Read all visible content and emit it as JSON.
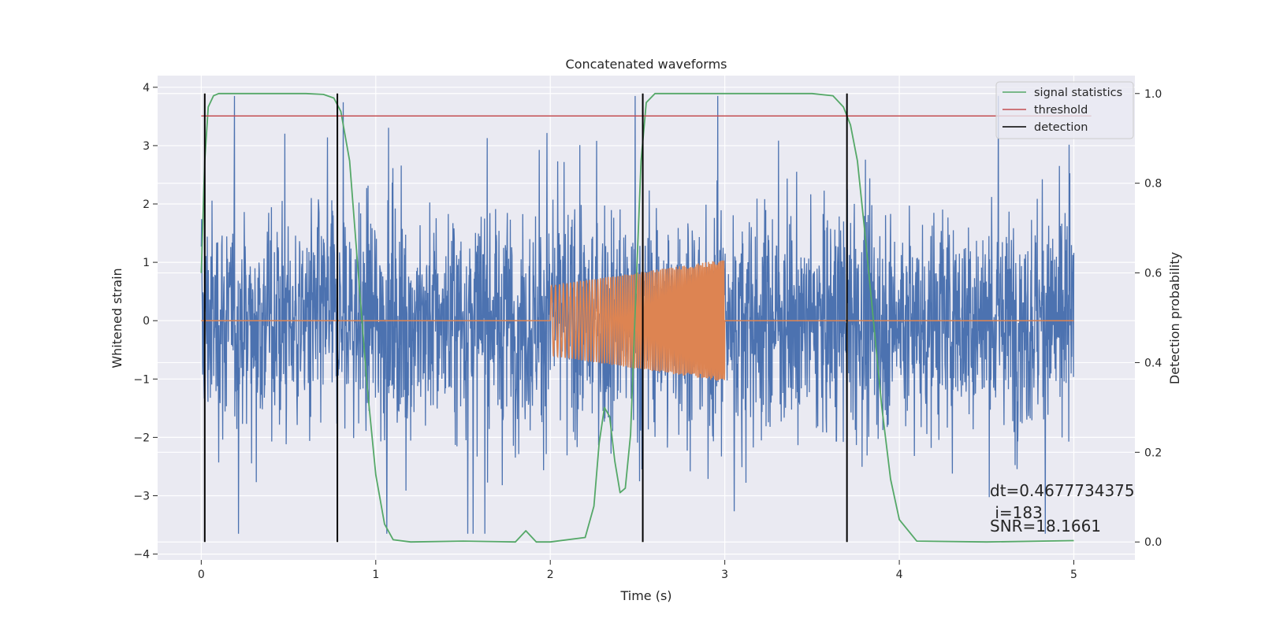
{
  "chart_data": {
    "type": "line",
    "title": "Concatenated waveforms",
    "xlabel": "Time (s)",
    "ylabel": "Whitened strain",
    "ylabel_right": "Detection probability",
    "xlim": [
      -0.25,
      5.35
    ],
    "ylim": [
      -4.1,
      4.2
    ],
    "ylim_right": [
      -0.04,
      1.04
    ],
    "x_ticks": [
      0,
      1,
      2,
      3,
      4,
      5
    ],
    "y_ticks": [
      -4,
      -3,
      -2,
      -1,
      0,
      1,
      2,
      3,
      4
    ],
    "y_ticks_right": [
      0.0,
      0.2,
      0.4,
      0.6,
      0.8,
      1.0
    ],
    "x_tick_labels": [
      "0",
      "1",
      "2",
      "3",
      "4",
      "5"
    ],
    "y_tick_labels": [
      "−4",
      "−3",
      "−2",
      "−1",
      "0",
      "1",
      "2",
      "3",
      "4"
    ],
    "y_tick_labels_right": [
      "0.0",
      "0.2",
      "0.4",
      "0.6",
      "0.8",
      "1.0"
    ],
    "grid": true,
    "legend_position": "top-right",
    "colors": {
      "background": "#eaeaf2",
      "strain": "#4c72b0",
      "template": "#dd8452",
      "signal_statistics": "#55a868",
      "threshold": "#c44e52",
      "detection": "#000000"
    },
    "series": [
      {
        "name": "",
        "axis": "left",
        "kind": "noise",
        "x_range": [
          0,
          5
        ],
        "amplitude_rms": 1.0,
        "y_min": -3.65,
        "y_max": 3.85
      },
      {
        "name": "",
        "axis": "left",
        "kind": "chirp",
        "x_range": [
          0,
          5
        ],
        "chirp_start": 2.0,
        "chirp_end": 3.0,
        "amplitude_start": 0.6,
        "amplitude_end": 1.05
      },
      {
        "name": "signal statistics",
        "axis": "right",
        "x": [
          0.0,
          0.02,
          0.04,
          0.07,
          0.1,
          0.3,
          0.6,
          0.7,
          0.76,
          0.8,
          0.85,
          0.9,
          0.95,
          1.0,
          1.05,
          1.1,
          1.2,
          1.5,
          1.8,
          1.86,
          1.92,
          2.0,
          2.2,
          2.25,
          2.28,
          2.31,
          2.34,
          2.37,
          2.4,
          2.43,
          2.46,
          2.49,
          2.52,
          2.55,
          2.6,
          2.7,
          3.5,
          3.62,
          3.68,
          3.72,
          3.76,
          3.8,
          3.85,
          3.9,
          3.95,
          4.0,
          4.1,
          4.5,
          5.0
        ],
        "y": [
          0.6,
          0.85,
          0.97,
          0.995,
          1.0,
          1.0,
          1.0,
          0.998,
          0.99,
          0.96,
          0.85,
          0.6,
          0.35,
          0.15,
          0.04,
          0.005,
          0.0,
          0.002,
          0.0,
          0.025,
          0.0,
          0.0,
          0.01,
          0.08,
          0.22,
          0.3,
          0.28,
          0.18,
          0.11,
          0.12,
          0.24,
          0.55,
          0.85,
          0.98,
          1.0,
          1.0,
          1.0,
          0.995,
          0.97,
          0.93,
          0.85,
          0.7,
          0.5,
          0.3,
          0.14,
          0.05,
          0.002,
          0.0,
          0.003
        ]
      },
      {
        "name": "threshold",
        "axis": "right",
        "x": [
          0,
          5.1
        ],
        "y": [
          0.95,
          0.95
        ]
      },
      {
        "name": "detection",
        "axis": "right",
        "vlines": [
          0.02,
          0.78,
          2.53,
          3.7
        ],
        "ymin": 0.0,
        "ymax": 1.0
      }
    ],
    "annotations": [
      "dt=0.4677734375",
      " i=183",
      "SNR=18.1661"
    ]
  }
}
